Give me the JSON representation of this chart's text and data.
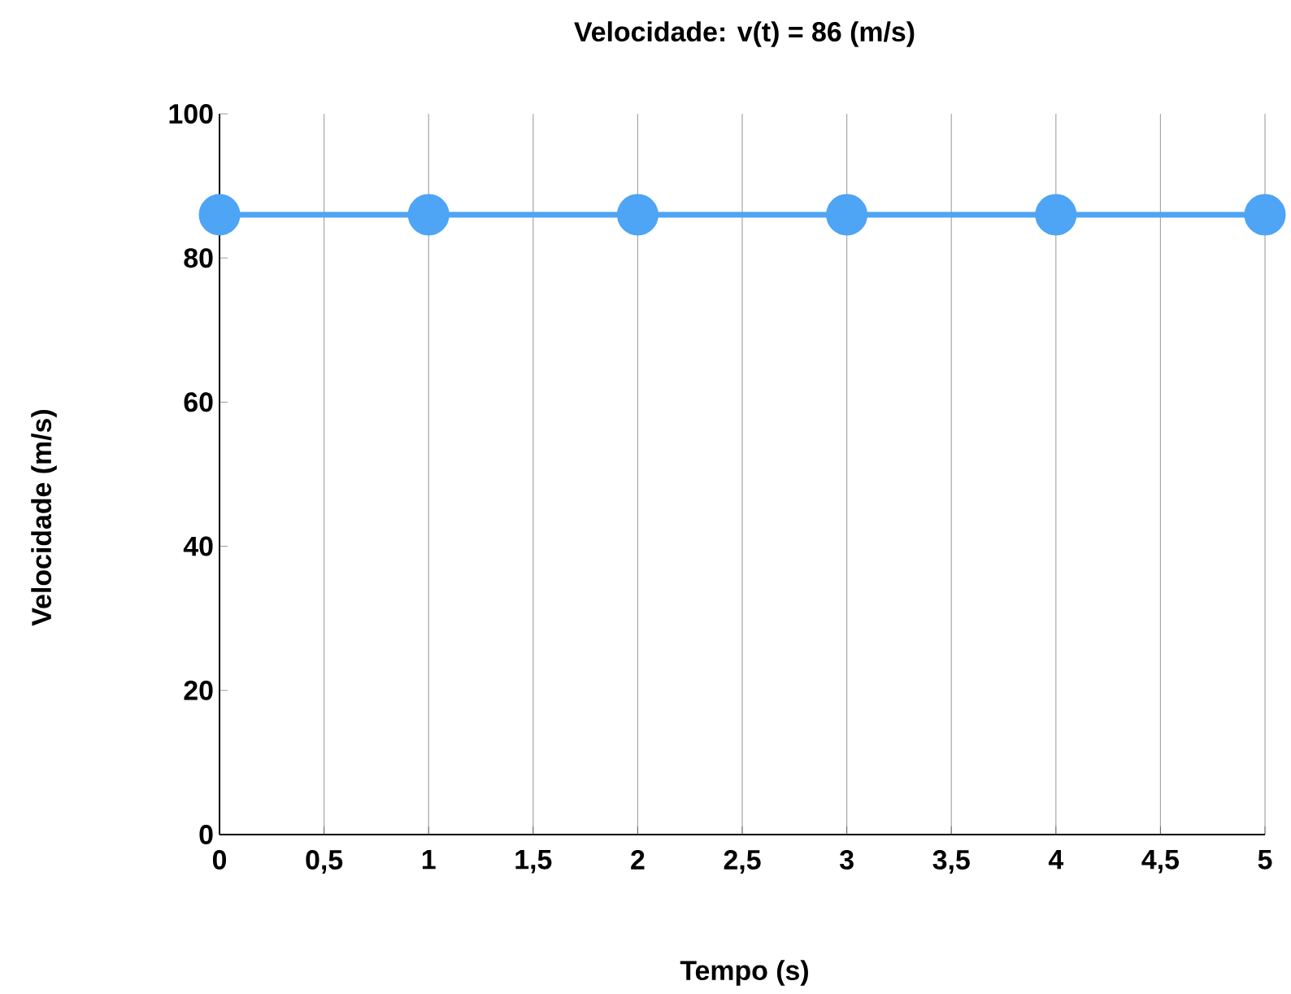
{
  "chart_data": {
    "type": "line",
    "title": "Velocidade:    v(t) = 86    (m/s)",
    "xlabel": "Tempo (s)",
    "ylabel": "Velocidade (m/s)",
    "x": [
      0,
      1,
      2,
      3,
      4,
      5
    ],
    "series": [
      {
        "color": "#4ea4f5",
        "values": [
          86,
          86,
          86,
          86,
          86,
          86
        ]
      }
    ],
    "xlim": [
      0,
      5
    ],
    "ylim": [
      0,
      100
    ],
    "xticks": [
      0,
      {
        "value": 0.5,
        "label": "0,5"
      },
      1,
      {
        "value": 1.5,
        "label": "1,5"
      },
      2,
      {
        "value": 2.5,
        "label": "2,5"
      },
      3,
      {
        "value": 3.5,
        "label": "3,5"
      },
      4,
      {
        "value": 4.5,
        "label": "4,5"
      },
      5
    ],
    "yticks": [
      0,
      20,
      40,
      60,
      80,
      100
    ],
    "grid": "x",
    "marker": "circle",
    "line_style": "solid"
  }
}
